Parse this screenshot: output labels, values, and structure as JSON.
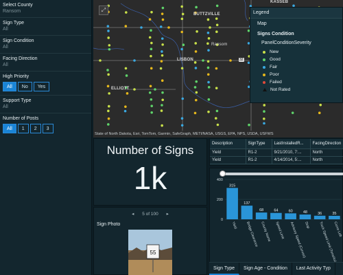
{
  "filters": {
    "county": {
      "label": "Select County",
      "value": "Ransom"
    },
    "sign_type": {
      "label": "Sign Type",
      "value": "All"
    },
    "sign_condition": {
      "label": "Sign Condition",
      "value": "All"
    },
    "facing_direction": {
      "label": "Facing Direction",
      "value": "All"
    },
    "high_priority": {
      "label": "High Priority",
      "options": [
        "All",
        "No",
        "Yes"
      ],
      "selected": "All"
    },
    "support_type": {
      "label": "Support Type",
      "value": "All"
    },
    "posts": {
      "label": "Number of Posts",
      "options": [
        "All",
        "1",
        "2",
        "3"
      ],
      "selected": "All"
    }
  },
  "map": {
    "places": {
      "buttzville": "BUTTZVILLE",
      "ransom": "Ransom",
      "lisbon": "LISBON",
      "elliott": "ELLIOTT",
      "kindred_partial": "KASSEB"
    },
    "route_shield": "32",
    "attribution": "State of North Dakota, Esri, TomTom, Garmin, SafeGraph, METI/NASA, USGS, EPA, NPS, USDA, USFWS",
    "expand_icon": "expand-icon"
  },
  "legend": {
    "title": "Legend",
    "layer": "Map",
    "group": "Signs Condition",
    "field": "PanelConditionSeverity",
    "items": [
      {
        "label": "New",
        "color": "#c8e04a"
      },
      {
        "label": "Good",
        "color": "#5fd36a"
      },
      {
        "label": "Fair",
        "color": "#3aa8e0"
      },
      {
        "label": "Poor",
        "color": "#e6b81c"
      },
      {
        "label": "Failed",
        "color": "#e04a3a"
      },
      {
        "label": "Not Rated",
        "color": "#111111"
      }
    ]
  },
  "indicator": {
    "title": "Number of Signs",
    "value": "1k"
  },
  "photo": {
    "pager_text": "5 of 100",
    "prev": "◂",
    "next": "▸",
    "label": "Sign Photo",
    "sign_number": "55"
  },
  "table": {
    "headers": [
      "Description",
      "SignType",
      "LastInstalledR...",
      "FacingDirection"
    ],
    "rows": [
      [
        "Yield",
        "R1-2",
        "9/21/2010, 7:...",
        "North"
      ],
      [
        "Yield",
        "R1-2",
        "4/14/2014, 5:...",
        "North"
      ]
    ]
  },
  "chart_data": {
    "type": "bar",
    "categories": [
      "Yield",
      "Bridge Clearance",
      "County Name",
      "Speed Limit",
      "Advisory Speed (Curves)",
      "Stop",
      "Truck Speed Limit (Tons/Axles)",
      "Curve Left"
    ],
    "values": [
      315,
      137,
      68,
      64,
      60,
      48,
      36,
      35
    ],
    "ylim": [
      0,
      400
    ],
    "yticks": [
      0,
      200,
      400
    ],
    "color": "#2a95d8"
  },
  "tabs": [
    {
      "label": "Sign Type",
      "active": true
    },
    {
      "label": "Sign Age - Condition",
      "active": false
    },
    {
      "label": "Last Activity Typ",
      "active": false
    }
  ]
}
